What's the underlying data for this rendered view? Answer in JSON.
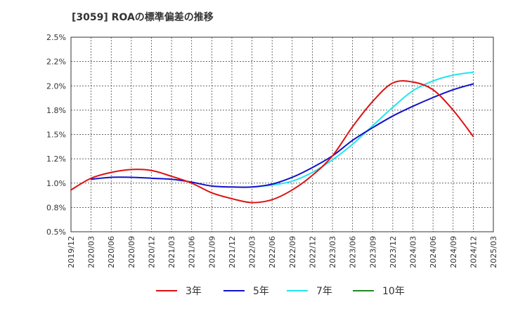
{
  "chart_data": {
    "type": "line",
    "title": "[3059]  ROAの標準偏差の推移",
    "xlabel": "",
    "ylabel": "",
    "x": [
      "2019/12",
      "2020/03",
      "2020/06",
      "2020/09",
      "2020/12",
      "2021/03",
      "2021/06",
      "2021/09",
      "2021/12",
      "2022/03",
      "2022/06",
      "2022/09",
      "2022/12",
      "2023/03",
      "2023/06",
      "2023/09",
      "2023/12",
      "2024/03",
      "2024/06",
      "2024/09",
      "2024/12",
      "2025/03"
    ],
    "ylim": [
      0.5,
      2.5
    ],
    "y_ticks": [
      "0.5%",
      "0.8%",
      "1.0%",
      "1.2%",
      "1.5%",
      "1.8%",
      "2.0%",
      "2.2%",
      "2.5%"
    ],
    "grid": true,
    "legend_position": "bottom",
    "series": [
      {
        "name": "3年",
        "color": "#dd1111",
        "values": [
          0.93,
          1.05,
          1.11,
          1.14,
          1.13,
          1.07,
          1.0,
          0.9,
          0.84,
          0.8,
          0.83,
          0.93,
          1.08,
          1.28,
          1.58,
          1.84,
          2.03,
          2.04,
          1.96,
          1.75,
          1.48,
          null
        ]
      },
      {
        "name": "5年",
        "color": "#1111cc",
        "values": [
          null,
          1.04,
          1.06,
          1.06,
          1.05,
          1.04,
          1.01,
          0.97,
          0.96,
          0.96,
          0.99,
          1.06,
          1.16,
          1.28,
          1.44,
          1.57,
          1.69,
          1.79,
          1.88,
          1.96,
          2.02,
          null
        ]
      },
      {
        "name": "7年",
        "color": "#22e5ee",
        "values": [
          null,
          null,
          null,
          null,
          null,
          null,
          null,
          null,
          null,
          0.96,
          0.98,
          1.02,
          1.11,
          1.24,
          1.4,
          1.59,
          1.78,
          1.95,
          2.05,
          2.11,
          2.14,
          null
        ]
      },
      {
        "name": "10年",
        "color": "#228822",
        "values": [
          null,
          null,
          null,
          null,
          null,
          null,
          null,
          null,
          null,
          null,
          null,
          null,
          null,
          null,
          null,
          null,
          null,
          null,
          null,
          null,
          null,
          null
        ]
      }
    ]
  }
}
